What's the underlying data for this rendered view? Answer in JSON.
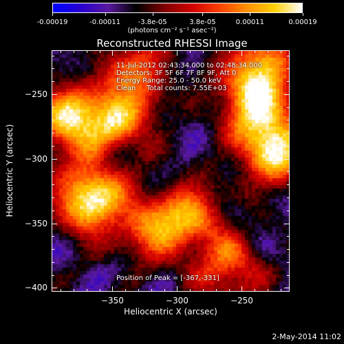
{
  "colorbar": {
    "tick_labels": [
      "-0.00019",
      "-0.00011",
      "-3.8e-05",
      "3.8e-05",
      "0.00011",
      "0.00019"
    ],
    "units": "(photons cm⁻² s⁻¹ asec⁻²)",
    "min": -0.00019,
    "max": 0.00019,
    "colors": [
      "#0000ff",
      "#2a00d0",
      "#5a1aa0",
      "#000000",
      "#800000",
      "#d00000",
      "#ff4000",
      "#ff9000",
      "#ffd000",
      "#ffffff"
    ]
  },
  "chart_data": {
    "type": "heatmap",
    "title": "Reconstructed RHESSI Image",
    "xlabel": "Heliocentric X (arcsec)",
    "ylabel": "Heliocentric Y (arcsec)",
    "xlim": [
      -397,
      -213
    ],
    "ylim": [
      -403,
      -216
    ],
    "x_ticks": [
      -350,
      -300,
      -250
    ],
    "x_tick_labels": [
      "−350",
      "−300",
      "−250"
    ],
    "y_ticks": [
      -400,
      -350,
      -300,
      -250
    ],
    "y_tick_labels": [
      "−400",
      "−350",
      "−300",
      "−250"
    ],
    "hotspots": [
      {
        "x": -367,
        "y": -331,
        "strength": 1.0
      },
      {
        "x": -383,
        "y": -270,
        "strength": 0.85
      },
      {
        "x": -345,
        "y": -268,
        "strength": 0.7
      },
      {
        "x": -225,
        "y": -292,
        "strength": 0.95
      },
      {
        "x": -240,
        "y": -255,
        "strength": 0.8
      },
      {
        "x": -290,
        "y": -345,
        "strength": 0.6
      },
      {
        "x": -320,
        "y": -355,
        "strength": 0.55
      },
      {
        "x": -330,
        "y": -230,
        "strength": 0.5
      },
      {
        "x": -260,
        "y": -385,
        "strength": 0.55
      },
      {
        "x": -235,
        "y": -225,
        "strength": 0.6
      }
    ],
    "peak": {
      "x": -367,
      "y": -331
    }
  },
  "info": {
    "time_range": "11-Jul-2012 02:43:34.000 to 02:48:34.000",
    "detectors": "Detectors: 3F 5F 6F 7F 8F 9F, Att 0",
    "energy": "Energy Range: 25.0 - 50.0 keV",
    "clean": "Clean     Total counts: 7.55E+03",
    "peak": "Position of Peak = [-367,-331]"
  },
  "timestamp": "2-May-2014 11:02"
}
